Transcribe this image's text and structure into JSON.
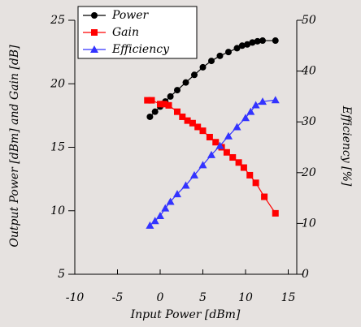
{
  "chart_data": {
    "type": "line",
    "xlabel": "Input Power [dBm]",
    "ylabel": "Output Power [dBm] and Gain [dB]",
    "y2label": "Efficiency [%]",
    "xlim": [
      -10,
      16
    ],
    "xticks": [
      -10,
      -5,
      0,
      5,
      10,
      15
    ],
    "ylim": [
      5,
      25
    ],
    "yticks": [
      5,
      10,
      15,
      20,
      25
    ],
    "y2lim": [
      0,
      50
    ],
    "y2ticks": [
      0,
      10,
      20,
      30,
      40,
      50
    ],
    "legend": "upper left",
    "series": [
      {
        "name": "Power",
        "color": "#000000",
        "marker": "circle",
        "axis": "y",
        "x": [
          -1.2,
          -0.6,
          0,
          0.6,
          1.2,
          2,
          3,
          4,
          5,
          6,
          7,
          8,
          9,
          9.6,
          10.2,
          10.8,
          11.4,
          12,
          13.5
        ],
        "values": [
          17.4,
          17.8,
          18.2,
          18.6,
          19,
          19.5,
          20.1,
          20.7,
          21.3,
          21.8,
          22.2,
          22.5,
          22.8,
          23,
          23.1,
          23.25,
          23.35,
          23.4,
          23.4
        ]
      },
      {
        "name": "Gain",
        "color": "#ff0000",
        "marker": "square",
        "axis": "y",
        "x": [
          -1.5,
          -1,
          0,
          0.5,
          1,
          2,
          2.6,
          3.2,
          3.8,
          4.4,
          5,
          5.8,
          6.5,
          7.2,
          7.8,
          8.5,
          9.2,
          9.8,
          10.5,
          11.2,
          12.2,
          13.5
        ],
        "values": [
          18.7,
          18.7,
          18.4,
          18.4,
          18.3,
          17.8,
          17.4,
          17.1,
          16.9,
          16.6,
          16.3,
          15.8,
          15.4,
          15.0,
          14.6,
          14.2,
          13.8,
          13.4,
          12.8,
          12.2,
          11.1,
          9.8
        ]
      },
      {
        "name": "Efficiency",
        "color": "#3333ff",
        "marker": "triangle",
        "axis": "y2",
        "x": [
          -1.2,
          -0.6,
          0,
          0.6,
          1.2,
          2,
          3,
          4,
          5,
          6,
          7,
          8,
          9,
          10,
          10.6,
          11.2,
          12,
          13.5
        ],
        "values": [
          9.6,
          10.5,
          11.5,
          13,
          14.3,
          15.8,
          17.5,
          19.5,
          21.5,
          23.5,
          25.3,
          27.2,
          29,
          30.8,
          32,
          33.3,
          34,
          34.3
        ]
      }
    ]
  }
}
